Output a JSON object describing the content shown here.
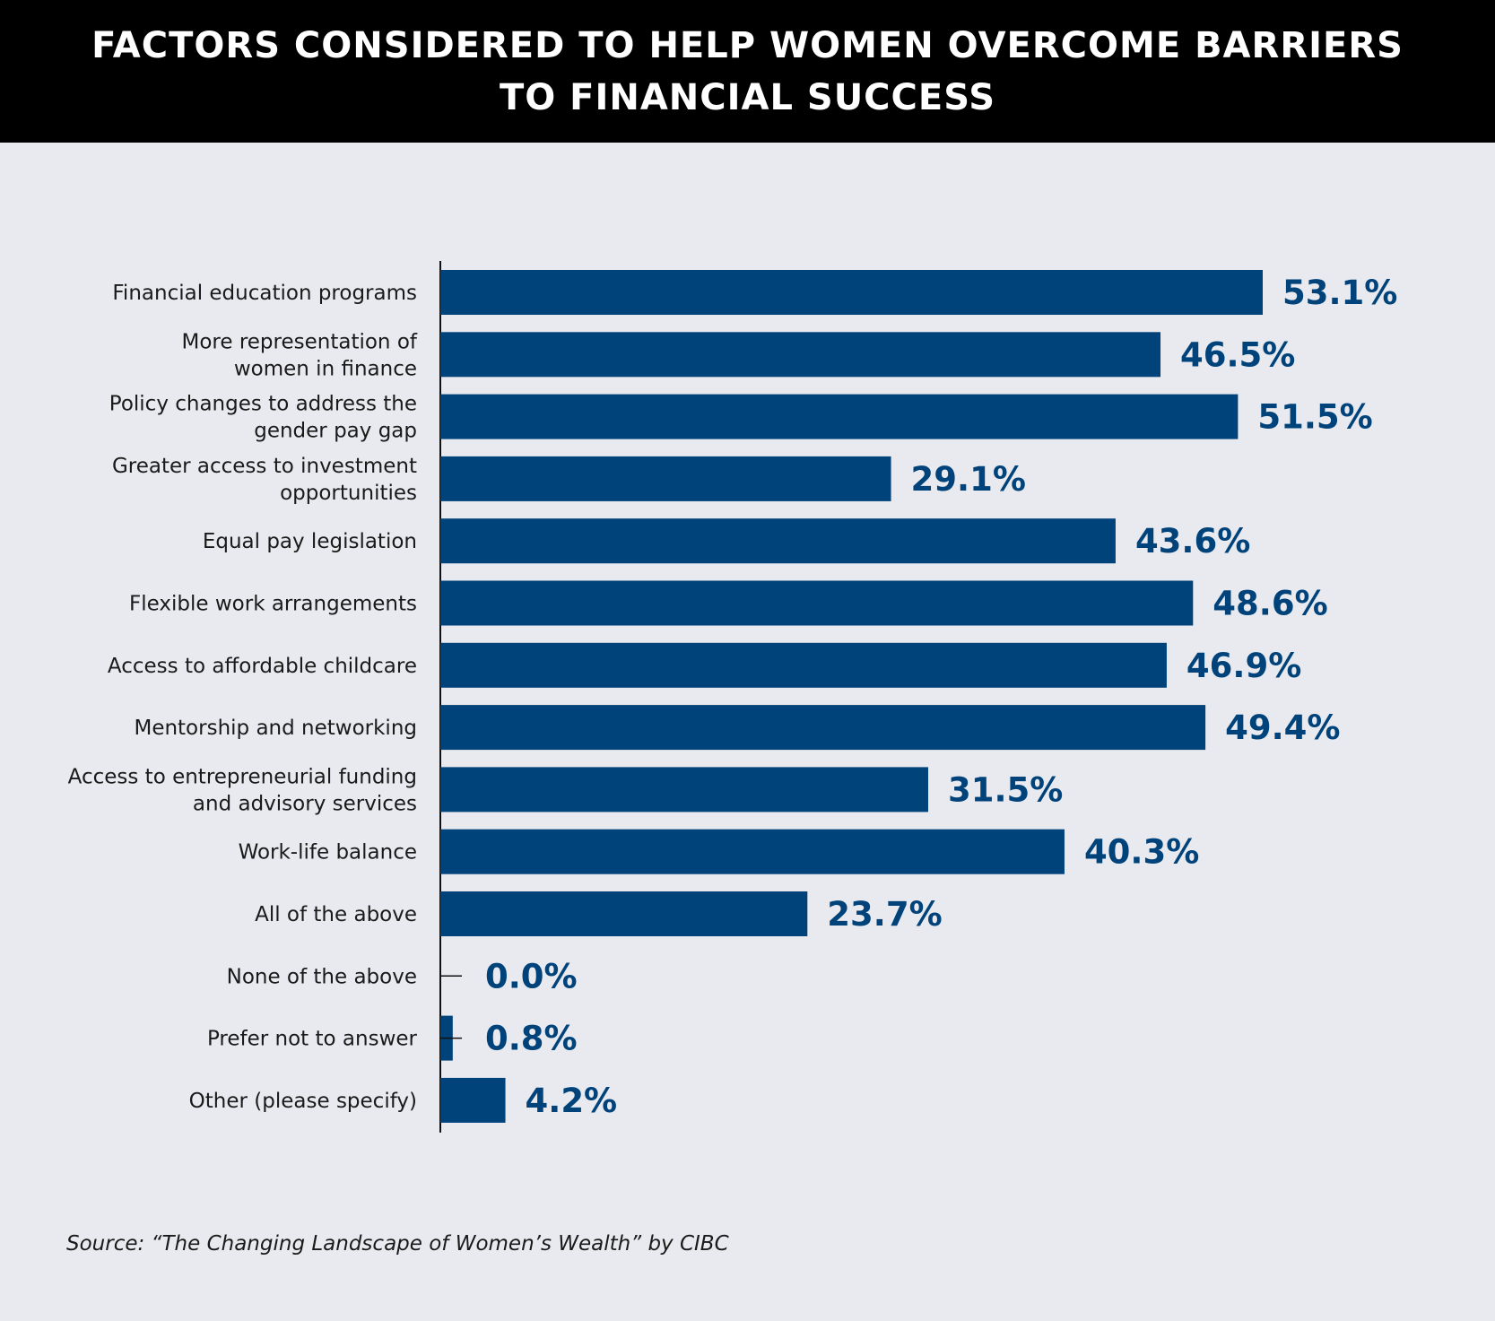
{
  "title_lines": [
    "FACTORS CONSIDERED TO HELP WOMEN OVERCOME BARRIERS",
    "TO FINANCIAL SUCCESS"
  ],
  "source": "Source: “The Changing Landscape of Women’s Wealth” by CIBC",
  "colors": {
    "bar": "#00427a",
    "label": "#00427a",
    "header_bg": "#000000",
    "background": "#e9eaef"
  },
  "chart_data": {
    "type": "bar",
    "orientation": "horizontal",
    "title": "FACTORS CONSIDERED TO HELP WOMEN OVERCOME BARRIERS TO FINANCIAL SUCCESS",
    "categories": [
      [
        "Financial education programs"
      ],
      [
        "More representation of",
        "women in finance"
      ],
      [
        "Policy changes to address the",
        "gender pay gap"
      ],
      [
        "Greater access to investment",
        "opportunities"
      ],
      [
        "Equal pay legislation"
      ],
      [
        "Flexible work arrangements"
      ],
      [
        "Access to affordable childcare"
      ],
      [
        "Mentorship and networking"
      ],
      [
        "Access to entrepreneurial funding",
        "and advisory services"
      ],
      [
        "Work-life balance"
      ],
      [
        "All of the above"
      ],
      [
        "None of the above"
      ],
      [
        "Prefer not to answer"
      ],
      [
        "Other (please specify)"
      ]
    ],
    "values": [
      53.1,
      46.5,
      51.5,
      29.1,
      43.6,
      48.6,
      46.9,
      49.4,
      31.5,
      40.3,
      23.7,
      0.0,
      0.8,
      4.2
    ],
    "value_labels": [
      "53.1%",
      "46.5%",
      "51.5%",
      "29.1%",
      "43.6%",
      "48.6%",
      "46.9%",
      "49.4%",
      "31.5%",
      "40.3%",
      "23.7%",
      "0.0%",
      "0.8%",
      "4.2%"
    ],
    "unit": "%",
    "xlim": [
      0,
      53.1
    ],
    "grid": false,
    "legend": "none"
  }
}
